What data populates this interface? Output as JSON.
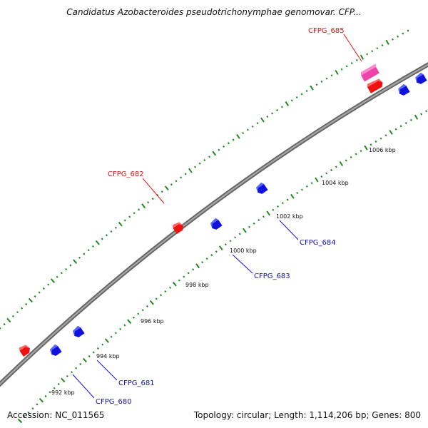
{
  "title": "Candidatus Azobacteroides pseudotrichonymphae genomovar. CFP...",
  "footer": {
    "accession": "Accession: NC_011565",
    "summary": "Topology: circular; Length: 1,114,206 bp; Genes: 800"
  },
  "colors": {
    "backbone": "#8a8a8a",
    "ticks": "#228822",
    "forward_gene": "#ee1111",
    "reverse_gene": "#1111dd",
    "rna_gene": "#ee44aa"
  },
  "ruler": {
    "unit": "kbp",
    "labels": [
      "992 kbp",
      "994 kbp",
      "996 kbp",
      "998 kbp",
      "1000 kbp",
      "1002 kbp",
      "1004 kbp",
      "1006 kbp"
    ]
  },
  "genes": [
    {
      "label": "CFPG_680",
      "strand": "reverse"
    },
    {
      "label": "CFPG_681",
      "strand": "reverse"
    },
    {
      "label": "CFPG_682",
      "strand": "forward"
    },
    {
      "label": "CFPG_683",
      "strand": "reverse"
    },
    {
      "label": "CFPG_684",
      "strand": "reverse"
    },
    {
      "label": "CFPG_685",
      "strand": "forward",
      "type": "rna"
    }
  ]
}
